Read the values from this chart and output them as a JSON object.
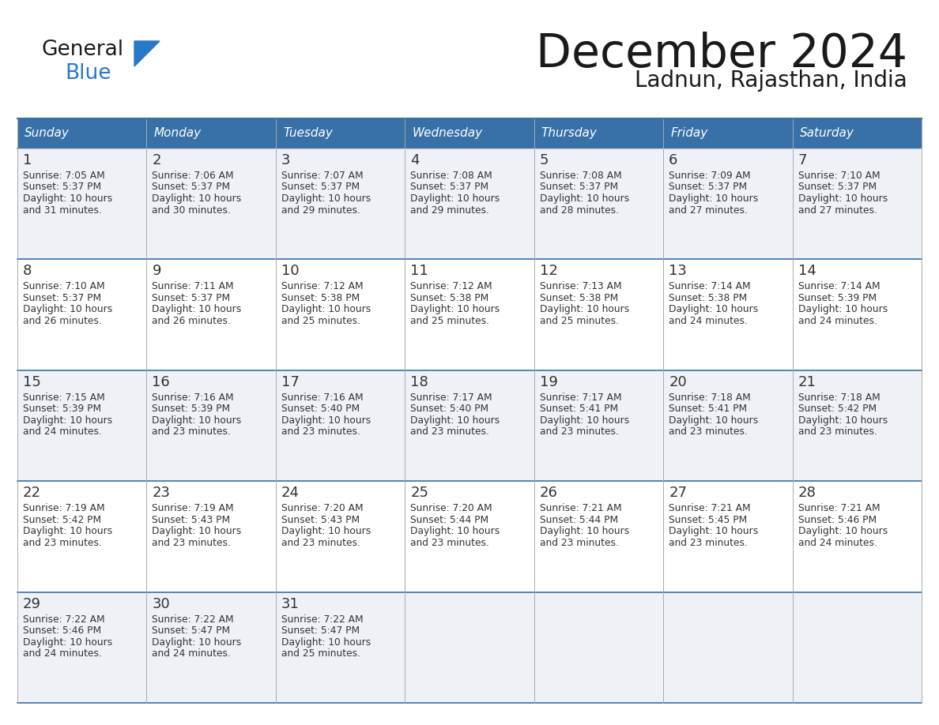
{
  "title": "December 2024",
  "subtitle": "Ladnun, Rajasthan, India",
  "header_bg": "#3771a8",
  "header_text_color": "#ffffff",
  "cell_bg_light": "#eef2f7",
  "cell_bg_white": "#ffffff",
  "border_color": "#3771a8",
  "day_names": [
    "Sunday",
    "Monday",
    "Tuesday",
    "Wednesday",
    "Thursday",
    "Friday",
    "Saturday"
  ],
  "title_color": "#1a1a1a",
  "subtitle_color": "#1a1a1a",
  "general_text_color": "#333333",
  "logo_general_color": "#1a1a1a",
  "logo_blue_color": "#2878c8",
  "calendar_data": [
    [
      {
        "day": 1,
        "sunrise": "7:05 AM",
        "sunset": "5:37 PM",
        "daylight": "10 hours and 31 minutes."
      },
      {
        "day": 2,
        "sunrise": "7:06 AM",
        "sunset": "5:37 PM",
        "daylight": "10 hours and 30 minutes."
      },
      {
        "day": 3,
        "sunrise": "7:07 AM",
        "sunset": "5:37 PM",
        "daylight": "10 hours and 29 minutes."
      },
      {
        "day": 4,
        "sunrise": "7:08 AM",
        "sunset": "5:37 PM",
        "daylight": "10 hours and 29 minutes."
      },
      {
        "day": 5,
        "sunrise": "7:08 AM",
        "sunset": "5:37 PM",
        "daylight": "10 hours and 28 minutes."
      },
      {
        "day": 6,
        "sunrise": "7:09 AM",
        "sunset": "5:37 PM",
        "daylight": "10 hours and 27 minutes."
      },
      {
        "day": 7,
        "sunrise": "7:10 AM",
        "sunset": "5:37 PM",
        "daylight": "10 hours and 27 minutes."
      }
    ],
    [
      {
        "day": 8,
        "sunrise": "7:10 AM",
        "sunset": "5:37 PM",
        "daylight": "10 hours and 26 minutes."
      },
      {
        "day": 9,
        "sunrise": "7:11 AM",
        "sunset": "5:37 PM",
        "daylight": "10 hours and 26 minutes."
      },
      {
        "day": 10,
        "sunrise": "7:12 AM",
        "sunset": "5:38 PM",
        "daylight": "10 hours and 25 minutes."
      },
      {
        "day": 11,
        "sunrise": "7:12 AM",
        "sunset": "5:38 PM",
        "daylight": "10 hours and 25 minutes."
      },
      {
        "day": 12,
        "sunrise": "7:13 AM",
        "sunset": "5:38 PM",
        "daylight": "10 hours and 25 minutes."
      },
      {
        "day": 13,
        "sunrise": "7:14 AM",
        "sunset": "5:38 PM",
        "daylight": "10 hours and 24 minutes."
      },
      {
        "day": 14,
        "sunrise": "7:14 AM",
        "sunset": "5:39 PM",
        "daylight": "10 hours and 24 minutes."
      }
    ],
    [
      {
        "day": 15,
        "sunrise": "7:15 AM",
        "sunset": "5:39 PM",
        "daylight": "10 hours and 24 minutes."
      },
      {
        "day": 16,
        "sunrise": "7:16 AM",
        "sunset": "5:39 PM",
        "daylight": "10 hours and 23 minutes."
      },
      {
        "day": 17,
        "sunrise": "7:16 AM",
        "sunset": "5:40 PM",
        "daylight": "10 hours and 23 minutes."
      },
      {
        "day": 18,
        "sunrise": "7:17 AM",
        "sunset": "5:40 PM",
        "daylight": "10 hours and 23 minutes."
      },
      {
        "day": 19,
        "sunrise": "7:17 AM",
        "sunset": "5:41 PM",
        "daylight": "10 hours and 23 minutes."
      },
      {
        "day": 20,
        "sunrise": "7:18 AM",
        "sunset": "5:41 PM",
        "daylight": "10 hours and 23 minutes."
      },
      {
        "day": 21,
        "sunrise": "7:18 AM",
        "sunset": "5:42 PM",
        "daylight": "10 hours and 23 minutes."
      }
    ],
    [
      {
        "day": 22,
        "sunrise": "7:19 AM",
        "sunset": "5:42 PM",
        "daylight": "10 hours and 23 minutes."
      },
      {
        "day": 23,
        "sunrise": "7:19 AM",
        "sunset": "5:43 PM",
        "daylight": "10 hours and 23 minutes."
      },
      {
        "day": 24,
        "sunrise": "7:20 AM",
        "sunset": "5:43 PM",
        "daylight": "10 hours and 23 minutes."
      },
      {
        "day": 25,
        "sunrise": "7:20 AM",
        "sunset": "5:44 PM",
        "daylight": "10 hours and 23 minutes."
      },
      {
        "day": 26,
        "sunrise": "7:21 AM",
        "sunset": "5:44 PM",
        "daylight": "10 hours and 23 minutes."
      },
      {
        "day": 27,
        "sunrise": "7:21 AM",
        "sunset": "5:45 PM",
        "daylight": "10 hours and 23 minutes."
      },
      {
        "day": 28,
        "sunrise": "7:21 AM",
        "sunset": "5:46 PM",
        "daylight": "10 hours and 24 minutes."
      }
    ],
    [
      {
        "day": 29,
        "sunrise": "7:22 AM",
        "sunset": "5:46 PM",
        "daylight": "10 hours and 24 minutes."
      },
      {
        "day": 30,
        "sunrise": "7:22 AM",
        "sunset": "5:47 PM",
        "daylight": "10 hours and 24 minutes."
      },
      {
        "day": 31,
        "sunrise": "7:22 AM",
        "sunset": "5:47 PM",
        "daylight": "10 hours and 25 minutes."
      },
      null,
      null,
      null,
      null
    ]
  ]
}
